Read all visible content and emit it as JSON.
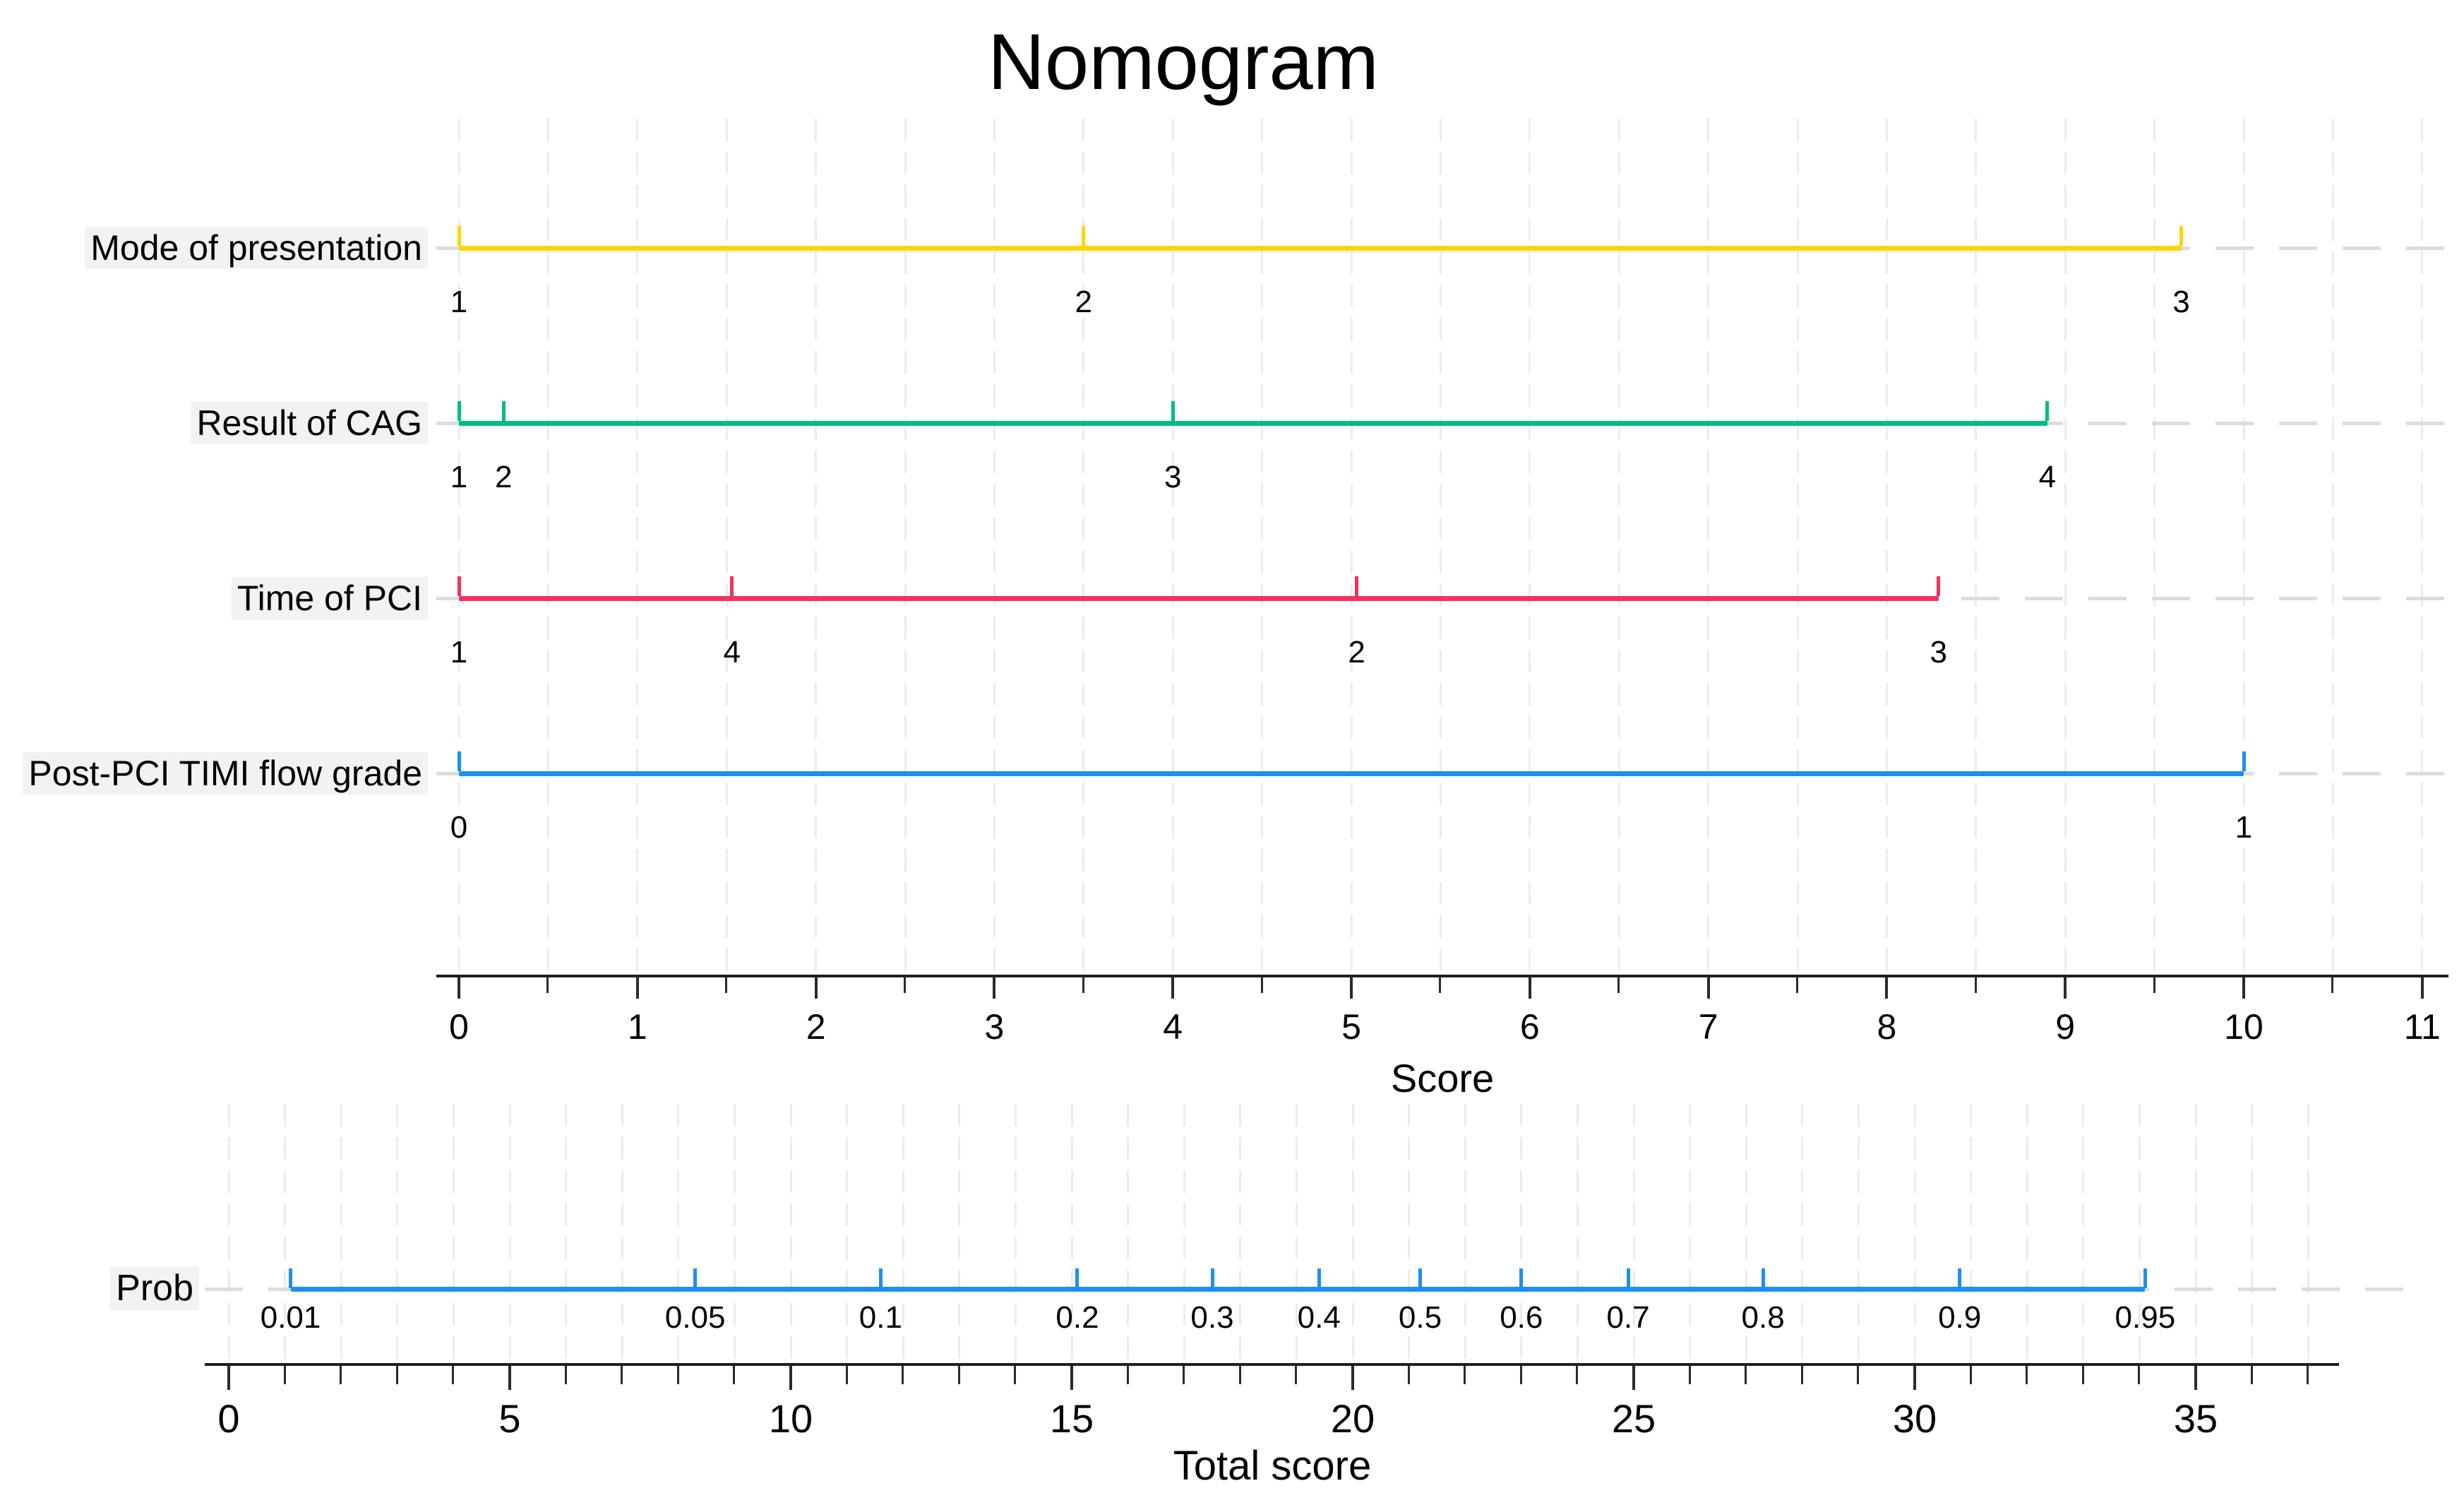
{
  "title": "Nomogram",
  "colors": {
    "yellow": "#FFD400",
    "green": "#00BE7C",
    "pink": "#F5315F",
    "blue": "#1E8FF2",
    "axis": "#1F1F1F",
    "grid": "#ECECEC",
    "dash": "#DCDCDC"
  },
  "chart_data": {
    "type": "nomogram",
    "title": "Nomogram",
    "grid": "dashed light gray, upper panel every 0.5 score units, lower panel every 1 total-score unit",
    "upper_panel": {
      "axis_title": "Score",
      "axis_range": [
        0,
        11
      ],
      "axis_major_tick_step": 1,
      "axis_minor_tick_step": 0.5,
      "axis_tick_labels": [
        "0",
        "1",
        "2",
        "3",
        "4",
        "5",
        "6",
        "7",
        "8",
        "9",
        "10",
        "11"
      ],
      "rows": [
        {
          "label": "Mode of presentation",
          "color": "#FFD400",
          "points": [
            {
              "label": "1",
              "score": 0
            },
            {
              "label": "2",
              "score": 3.5
            },
            {
              "label": "3",
              "score": 9.65
            }
          ]
        },
        {
          "label": "Result of CAG",
          "color": "#00BE7C",
          "points": [
            {
              "label": "1",
              "score": 0
            },
            {
              "label": "2",
              "score": 0.25
            },
            {
              "label": "3",
              "score": 4.0
            },
            {
              "label": "4",
              "score": 8.9
            }
          ]
        },
        {
          "label": "Time of PCI",
          "color": "#F5315F",
          "points": [
            {
              "label": "1",
              "score": 0
            },
            {
              "label": "4",
              "score": 1.53
            },
            {
              "label": "2",
              "score": 5.03
            },
            {
              "label": "3",
              "score": 8.29
            }
          ]
        },
        {
          "label": "Post-PCI TIMI flow grade",
          "color": "#1E8FF2",
          "points": [
            {
              "label": "0",
              "score": 0
            },
            {
              "label": "1",
              "score": 10.0
            }
          ]
        }
      ]
    },
    "lower_panel": {
      "row_label": "Prob",
      "row_color": "#1E8FF2",
      "axis_title": "Total score",
      "axis_range": [
        0,
        37
      ],
      "axis_major_ticks": [
        0,
        5,
        10,
        15,
        20,
        25,
        30,
        35
      ],
      "axis_minor_tick_step": 1,
      "axis_tick_labels": [
        "0",
        "5",
        "10",
        "15",
        "20",
        "25",
        "30",
        "35"
      ],
      "points": [
        {
          "label": "0.01",
          "total_score": 1.1
        },
        {
          "label": "0.05",
          "total_score": 8.3
        },
        {
          "label": "0.1",
          "total_score": 11.6
        },
        {
          "label": "0.2",
          "total_score": 15.1
        },
        {
          "label": "0.3",
          "total_score": 17.5
        },
        {
          "label": "0.4",
          "total_score": 19.4
        },
        {
          "label": "0.5",
          "total_score": 21.2
        },
        {
          "label": "0.6",
          "total_score": 23.0
        },
        {
          "label": "0.7",
          "total_score": 24.9
        },
        {
          "label": "0.8",
          "total_score": 27.3
        },
        {
          "label": "0.9",
          "total_score": 30.8
        },
        {
          "label": "0.95",
          "total_score": 34.1
        }
      ]
    }
  }
}
